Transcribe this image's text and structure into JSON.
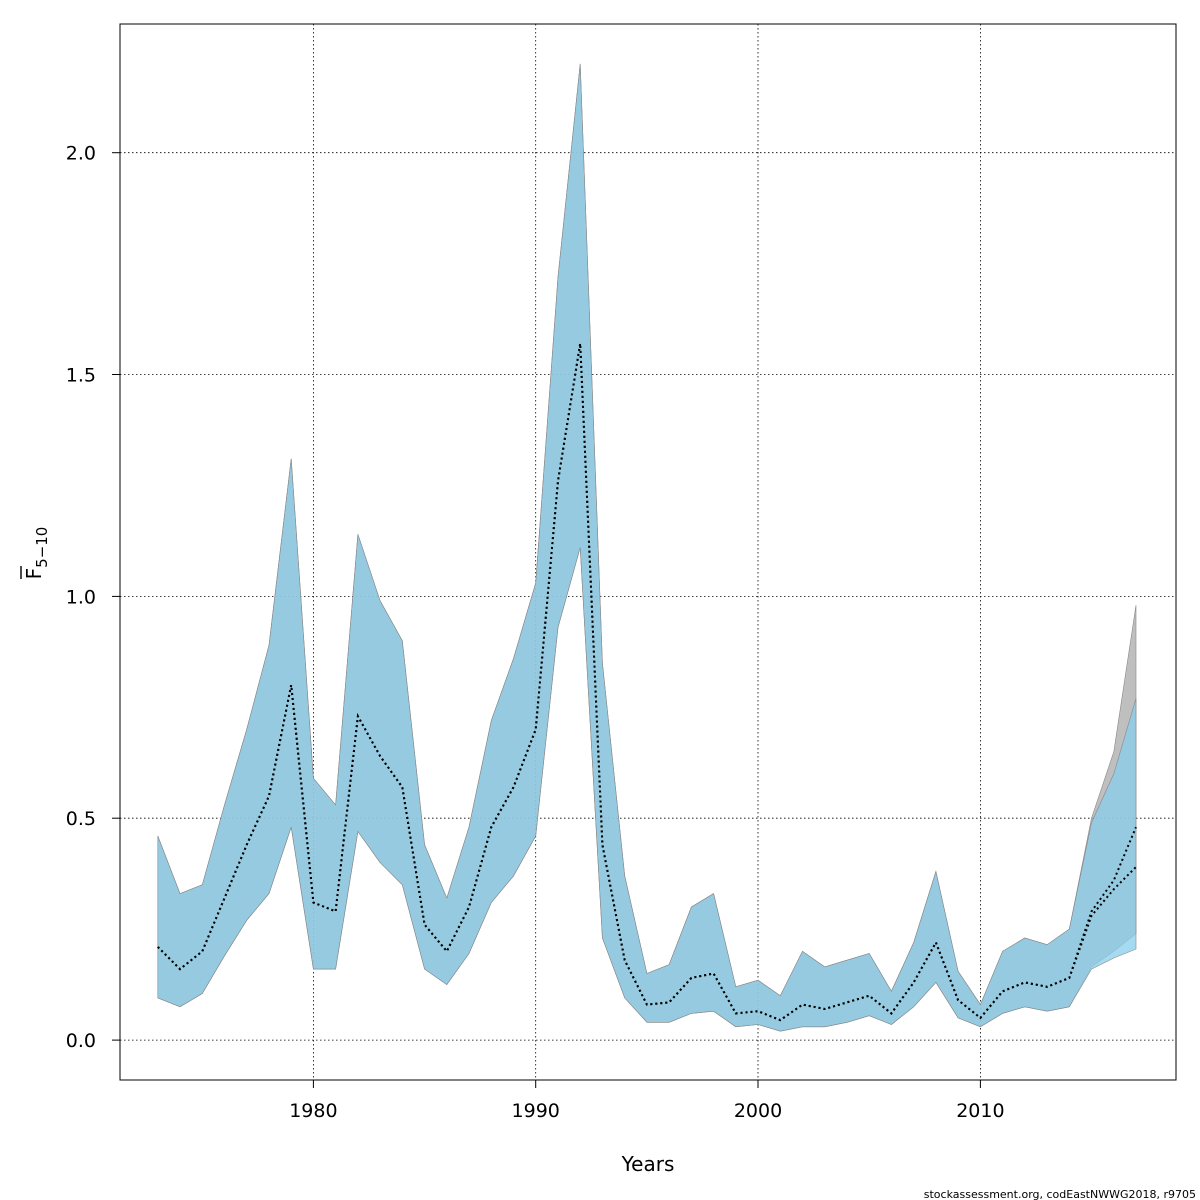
{
  "chart_data": {
    "type": "area",
    "xlabel": "Years",
    "ylabel_main": "F",
    "ylabel_sub": "5−10",
    "credit": "stockassessment.org, codEastNWWG2018, r9705",
    "xlim": [
      1971.3,
      2018.8
    ],
    "ylim": [
      -0.09,
      2.29
    ],
    "x_ticks": [
      1980,
      1990,
      2000,
      2010
    ],
    "y_ticks": [
      0.0,
      0.5,
      1.0,
      1.5,
      2.0
    ],
    "y_tick_labels": [
      "0.0",
      "0.5",
      "1.0",
      "1.5",
      "2.0"
    ],
    "grid": true,
    "colors": {
      "band_blue": "#87ceeb",
      "band_grey": "#a9a9a9",
      "overlap": "#a5c4d6",
      "line": "#000000"
    },
    "series": [
      {
        "years": [
          1973,
          1974,
          1975,
          1976,
          1977,
          1978,
          1979,
          1980,
          1981,
          1982,
          1983,
          1984,
          1985,
          1986,
          1987,
          1988,
          1989,
          1990,
          1991,
          1992,
          1993,
          1994,
          1995,
          1996,
          1997,
          1998,
          1999,
          2000,
          2001,
          2002,
          2003,
          2004,
          2005,
          2006,
          2007,
          2008,
          2009,
          2010,
          2011,
          2012,
          2013,
          2014,
          2015,
          2016,
          2017
        ],
        "estimate": [
          0.21,
          0.16,
          0.2,
          0.32,
          0.44,
          0.55,
          0.8,
          0.31,
          0.29,
          0.73,
          0.64,
          0.57,
          0.26,
          0.2,
          0.3,
          0.48,
          0.57,
          0.7,
          1.26,
          1.57,
          0.44,
          0.18,
          0.08,
          0.085,
          0.14,
          0.15,
          0.06,
          0.065,
          0.045,
          0.08,
          0.07,
          0.085,
          0.1,
          0.06,
          0.13,
          0.22,
          0.09,
          0.05,
          0.11,
          0.13,
          0.12,
          0.14,
          0.29,
          0.36,
          0.48
        ],
        "lower": [
          0.095,
          0.075,
          0.105,
          0.19,
          0.27,
          0.33,
          0.48,
          0.16,
          0.16,
          0.47,
          0.4,
          0.35,
          0.16,
          0.125,
          0.195,
          0.31,
          0.37,
          0.46,
          0.93,
          1.11,
          0.23,
          0.095,
          0.04,
          0.04,
          0.06,
          0.065,
          0.03,
          0.035,
          0.02,
          0.03,
          0.03,
          0.04,
          0.055,
          0.035,
          0.075,
          0.13,
          0.05,
          0.03,
          0.06,
          0.075,
          0.065,
          0.075,
          0.165,
          0.2,
          0.24
        ],
        "upper": [
          0.46,
          0.33,
          0.35,
          0.53,
          0.7,
          0.89,
          1.31,
          0.59,
          0.53,
          1.14,
          0.99,
          0.9,
          0.44,
          0.32,
          0.48,
          0.72,
          0.86,
          1.03,
          1.72,
          2.2,
          0.85,
          0.37,
          0.15,
          0.17,
          0.3,
          0.33,
          0.12,
          0.135,
          0.1,
          0.2,
          0.165,
          0.18,
          0.195,
          0.11,
          0.22,
          0.38,
          0.155,
          0.08,
          0.2,
          0.23,
          0.215,
          0.25,
          0.5,
          0.65,
          0.98
        ]
      },
      {
        "years": [
          1973,
          1974,
          1975,
          1976,
          1977,
          1978,
          1979,
          1980,
          1981,
          1982,
          1983,
          1984,
          1985,
          1986,
          1987,
          1988,
          1989,
          1990,
          1991,
          1992,
          1993,
          1994,
          1995,
          1996,
          1997,
          1998,
          1999,
          2000,
          2001,
          2002,
          2003,
          2004,
          2005,
          2006,
          2007,
          2008,
          2009,
          2010,
          2011,
          2012,
          2013,
          2014,
          2015,
          2016,
          2017
        ],
        "estimate": [
          0.21,
          0.16,
          0.2,
          0.32,
          0.44,
          0.55,
          0.8,
          0.31,
          0.29,
          0.73,
          0.64,
          0.57,
          0.26,
          0.2,
          0.3,
          0.48,
          0.57,
          0.7,
          1.26,
          1.57,
          0.44,
          0.18,
          0.08,
          0.085,
          0.14,
          0.15,
          0.06,
          0.065,
          0.045,
          0.08,
          0.07,
          0.085,
          0.1,
          0.06,
          0.13,
          0.22,
          0.09,
          0.05,
          0.11,
          0.13,
          0.12,
          0.14,
          0.28,
          0.34,
          0.39
        ],
        "lower": [
          0.095,
          0.075,
          0.105,
          0.19,
          0.27,
          0.33,
          0.48,
          0.16,
          0.16,
          0.47,
          0.4,
          0.35,
          0.16,
          0.125,
          0.195,
          0.31,
          0.37,
          0.46,
          0.93,
          1.11,
          0.23,
          0.095,
          0.04,
          0.04,
          0.06,
          0.065,
          0.03,
          0.035,
          0.02,
          0.03,
          0.03,
          0.04,
          0.055,
          0.035,
          0.075,
          0.13,
          0.05,
          0.03,
          0.06,
          0.075,
          0.065,
          0.075,
          0.16,
          0.185,
          0.205
        ],
        "upper": [
          0.46,
          0.33,
          0.35,
          0.53,
          0.7,
          0.89,
          1.31,
          0.59,
          0.53,
          1.14,
          0.99,
          0.9,
          0.44,
          0.32,
          0.48,
          0.72,
          0.86,
          1.03,
          1.72,
          2.2,
          0.85,
          0.37,
          0.15,
          0.17,
          0.3,
          0.33,
          0.12,
          0.135,
          0.1,
          0.2,
          0.165,
          0.18,
          0.195,
          0.11,
          0.22,
          0.38,
          0.155,
          0.08,
          0.2,
          0.23,
          0.215,
          0.25,
          0.49,
          0.6,
          0.77
        ]
      }
    ]
  }
}
